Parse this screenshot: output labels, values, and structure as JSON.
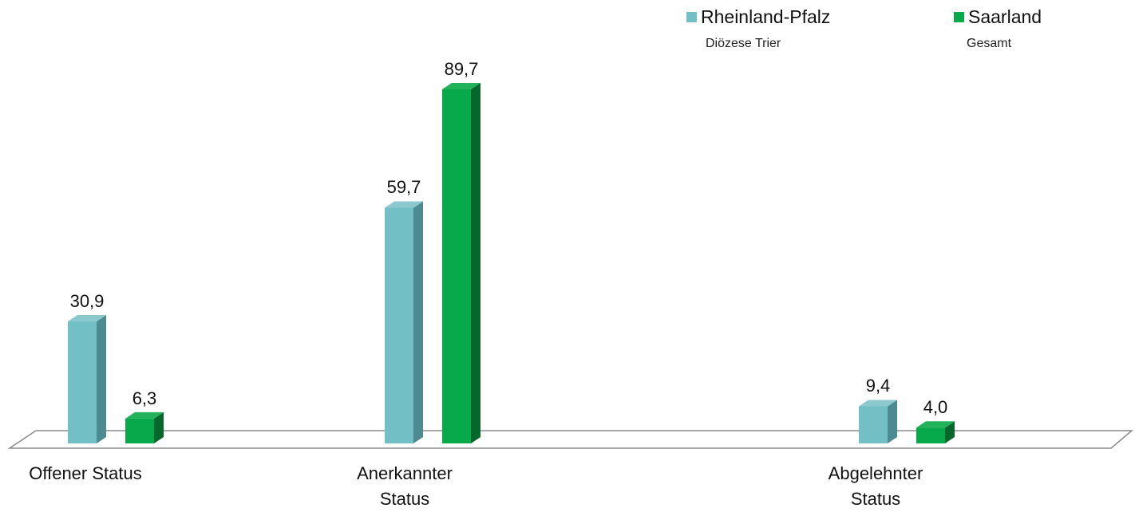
{
  "legend": {
    "items": [
      {
        "label": "Rheinland-Pfalz",
        "color": "#72bfc6"
      },
      {
        "label": "Saarland",
        "color": "#07a94a"
      }
    ],
    "subtitles": [
      "Diözese Trier",
      "Gesamt"
    ]
  },
  "chart_data": {
    "type": "bar",
    "style": "3d-clustered",
    "categories": [
      [
        "Offener Status"
      ],
      [
        "Anerkannter",
        "Status"
      ],
      [
        "Abgelehnter",
        "Status"
      ]
    ],
    "series": [
      {
        "name": "Rheinland-Pfalz",
        "values": [
          30.9,
          59.7,
          9.4
        ],
        "labels": [
          "30,9",
          "59,7",
          "9,4"
        ],
        "color": "#72bfc6",
        "side_color": "#4c8b91",
        "top_color": "#8cc9cf"
      },
      {
        "name": "Saarland",
        "values": [
          6.3,
          89.7,
          4.0
        ],
        "labels": [
          "6,3",
          "89,7",
          "4,0"
        ],
        "color": "#07a94a",
        "side_color": "#05672c",
        "top_color": "#22b35a"
      }
    ],
    "ylim": [
      0,
      89.7
    ],
    "grid": false,
    "legend_position": "top-right"
  }
}
